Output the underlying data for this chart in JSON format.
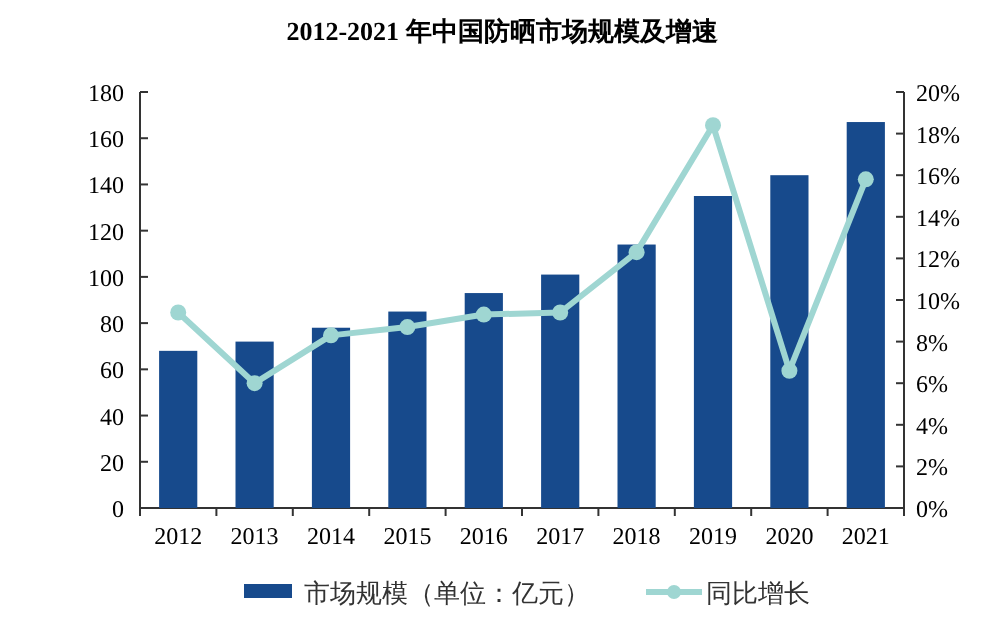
{
  "chart_data": {
    "type": "bar",
    "title": "2012-2021 年中国防晒市场规模及增速",
    "categories": [
      "2012",
      "2013",
      "2014",
      "2015",
      "2016",
      "2017",
      "2018",
      "2019",
      "2020",
      "2021"
    ],
    "series": [
      {
        "name": "市场规模（单位：亿元）",
        "color": "#174a8c",
        "values": [
          68,
          72,
          78,
          85,
          93,
          101,
          114,
          135,
          144,
          167
        ]
      },
      {
        "name": "同比增长",
        "type": "line",
        "axis": "y2",
        "color": "#9fd6d2",
        "marker": "circle",
        "values": [
          9.4,
          6.0,
          8.3,
          8.7,
          9.3,
          9.4,
          12.3,
          18.4,
          6.6,
          15.8
        ]
      }
    ],
    "ylim": [
      0,
      180
    ],
    "yticks": [
      0,
      20,
      40,
      60,
      80,
      100,
      120,
      140,
      160,
      180
    ],
    "y2lim": [
      0,
      20
    ],
    "y2ticks": [
      {
        "value": 0,
        "label": "0%"
      },
      {
        "value": 2,
        "label": "2%"
      },
      {
        "value": 4,
        "label": "4%"
      },
      {
        "value": 6,
        "label": "6%"
      },
      {
        "value": 8,
        "label": "8%"
      },
      {
        "value": 10,
        "label": "10%"
      },
      {
        "value": 12,
        "label": "12%"
      },
      {
        "value": 14,
        "label": "14%"
      },
      {
        "value": 16,
        "label": "16%"
      },
      {
        "value": 18,
        "label": "18%"
      },
      {
        "value": 20,
        "label": "20%"
      }
    ],
    "grid": false,
    "legend": "bottom"
  }
}
